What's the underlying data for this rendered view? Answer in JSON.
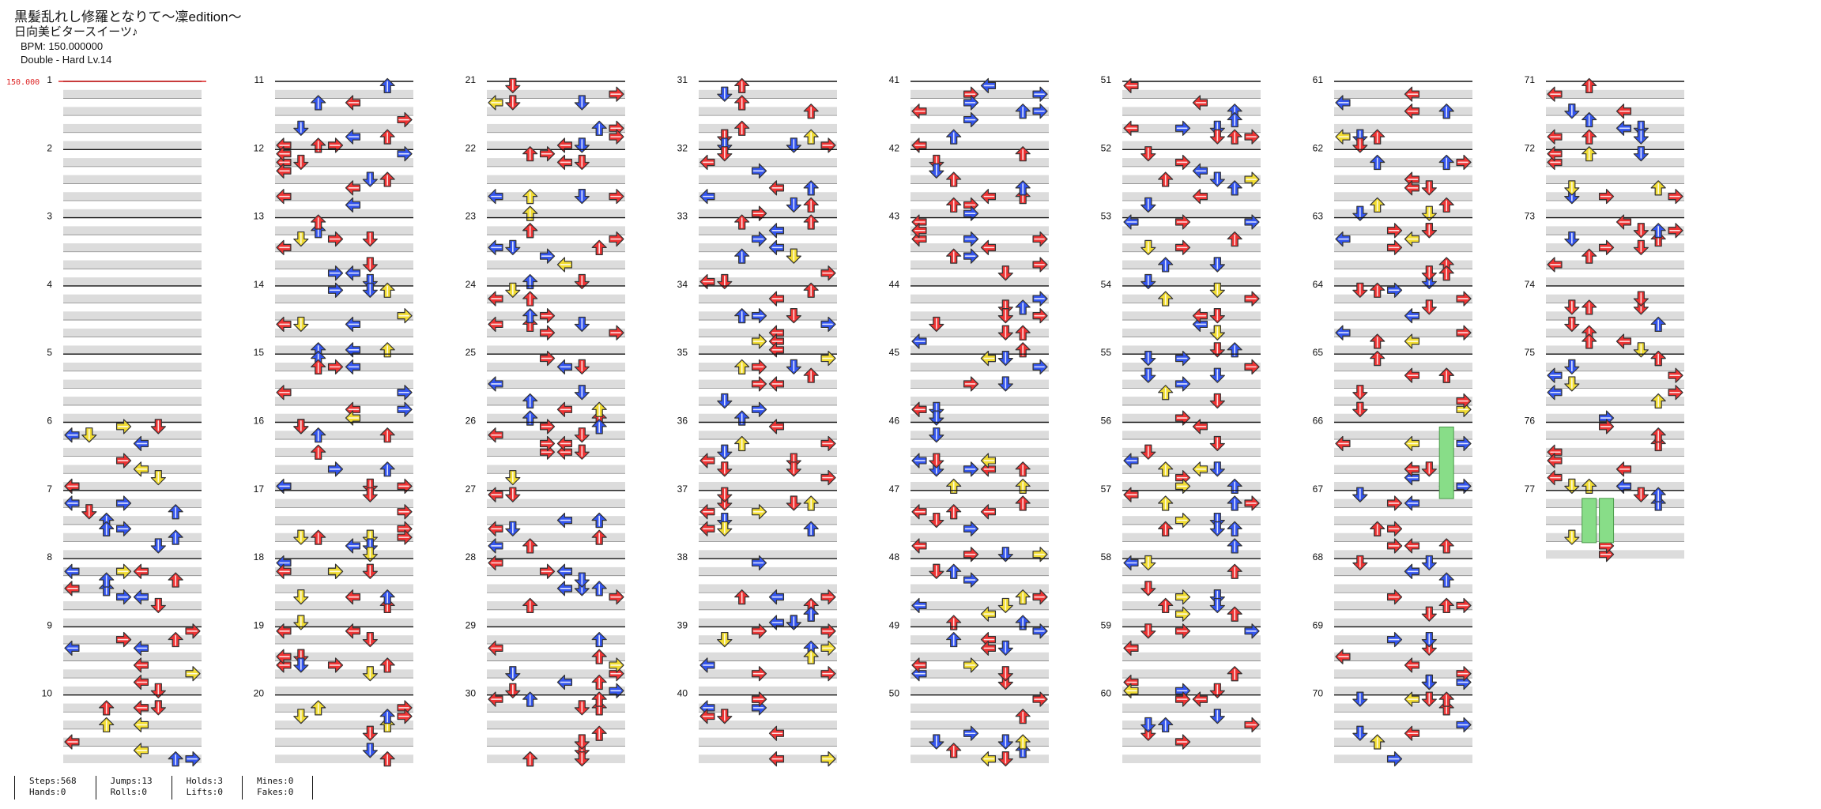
{
  "song": {
    "title": "黒髪乱れし修羅となりて～凜edition～",
    "artist": "日向美ビタースイーツ♪",
    "bpm_label": "BPM: 150.000000",
    "difficulty_label": "Double - Hard  Lv.14"
  },
  "bpm_marker": "150.000",
  "measures": [
    "1",
    "2",
    "3",
    "4",
    "5",
    "6",
    "7",
    "8",
    "9",
    "10",
    "11",
    "12",
    "13",
    "14",
    "15",
    "16",
    "17",
    "18",
    "19",
    "20",
    "21",
    "22",
    "23",
    "24",
    "25",
    "26",
    "27",
    "28",
    "29",
    "30",
    "31",
    "32",
    "33",
    "34",
    "35",
    "36",
    "37",
    "38",
    "39",
    "40",
    "41",
    "42",
    "43",
    "44",
    "45",
    "46",
    "47",
    "48",
    "49",
    "50",
    "51",
    "52",
    "53",
    "54",
    "55",
    "56",
    "57",
    "58",
    "59",
    "60",
    "61",
    "62",
    "63",
    "64",
    "65",
    "66",
    "67",
    "68",
    "69",
    "70",
    "71",
    "72",
    "73",
    "74",
    "75",
    "76",
    "77"
  ],
  "stats": [
    [
      "Steps:568",
      "Hands:0"
    ],
    [
      "Jumps:13",
      "Rolls:0"
    ],
    [
      "Holds:3",
      "Lifts:0"
    ],
    [
      "Mines:0",
      "Fakes:0"
    ]
  ],
  "colors": {
    "quarter": "#ee3333",
    "eighth": "#3355ee",
    "sixteenth": "#f2dd33",
    "hold": "#88dd88",
    "stripe": "#dcdcdc"
  }
}
